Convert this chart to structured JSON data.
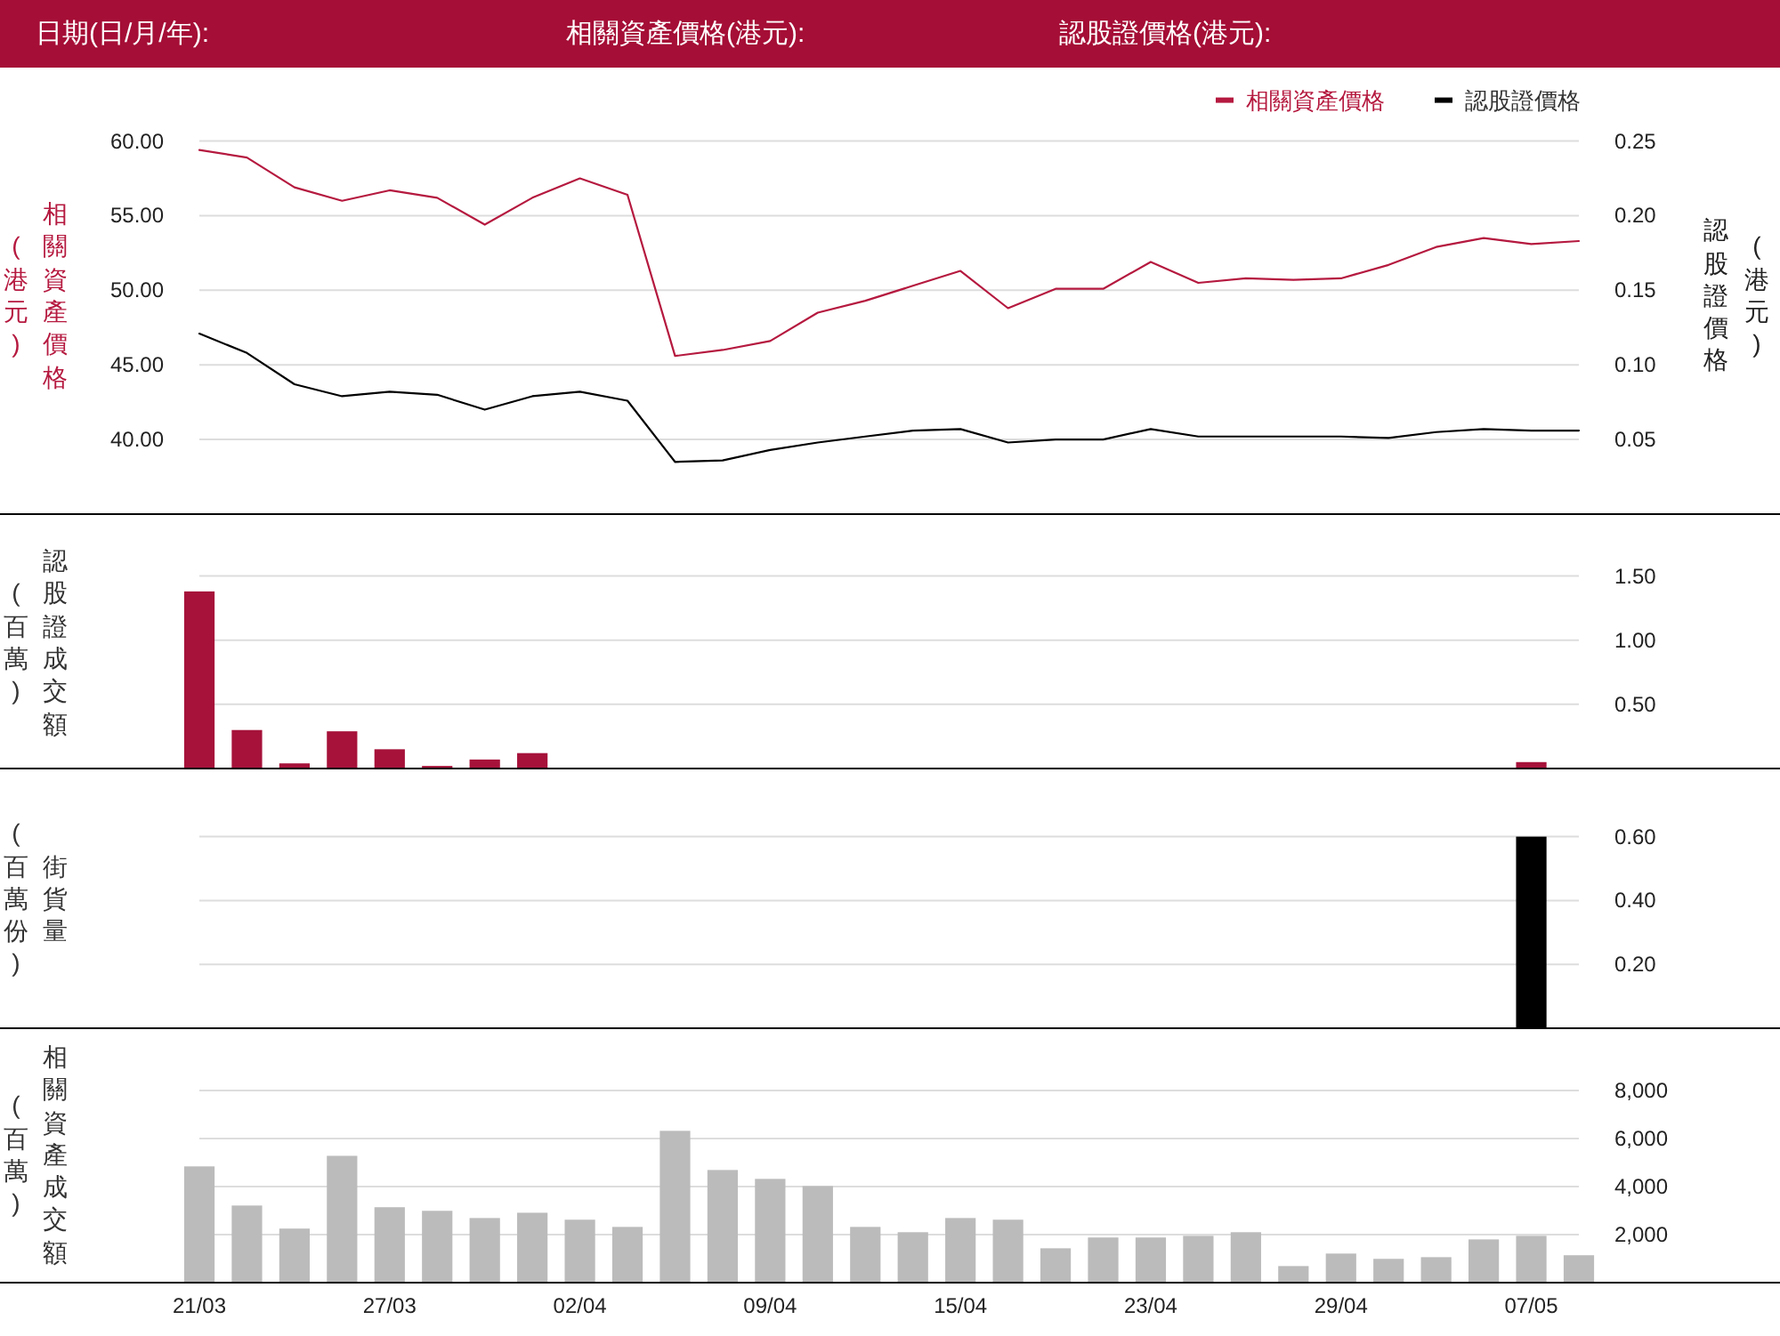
{
  "chart_data": [
    {
      "type": "line",
      "annotations": [
        "日期(日/月/年):",
        "相關資產價格(港元):",
        "認股證價格(港元):"
      ],
      "categories": [
        null,
        null,
        null,
        null,
        null,
        null,
        null,
        null,
        null,
        null,
        null,
        null,
        null,
        null,
        null,
        null,
        null,
        null,
        null,
        null,
        null,
        null,
        null,
        null,
        null,
        null,
        null,
        null,
        null,
        null
      ],
      "ylabel": "相關資產價格(港元)",
      "y2label": "認股證價格(港元)",
      "ylim": [
        35,
        60
      ],
      "yticks": [
        {
          "value": 40,
          "label": "40.00"
        },
        {
          "value": 45,
          "label": "45.00"
        },
        {
          "value": 50,
          "label": "50.00"
        },
        {
          "value": 55,
          "label": "55.00"
        },
        {
          "value": 60,
          "label": "60.00"
        }
      ],
      "y2lim": [
        0,
        0.25
      ],
      "y2ticks": [
        0.05,
        {
          "value": 0.1,
          "label": "0.10"
        },
        0.15,
        {
          "value": 0.2,
          "label": "0.20"
        },
        0.25
      ],
      "grid": "y",
      "legend": "top right",
      "tick_labels": "y",
      "series": [
        {
          "name": "相關資產價格",
          "color": "#b5193f",
          "values": [
            59.4,
            58.9,
            56.9,
            56.0,
            56.7,
            56.2,
            54.4,
            56.2,
            57.5,
            56.4,
            45.6,
            46.0,
            46.6,
            48.5,
            49.3,
            50.3,
            51.3,
            48.8,
            50.1,
            50.1,
            51.9,
            50.5,
            50.8,
            50.7,
            50.8,
            51.7,
            52.9,
            53.5,
            53.1,
            53.3
          ]
        },
        {
          "name": "認股證價格",
          "color": "#000000",
          "axis": "y2",
          "values": [
            0.121,
            0.108,
            0.087,
            0.079,
            0.082,
            0.08,
            0.07,
            0.079,
            0.082,
            0.076,
            0.035,
            0.036,
            0.043,
            0.048,
            0.052,
            0.056,
            0.057,
            0.048,
            0.05,
            0.05,
            0.057,
            0.052,
            0.052,
            0.052,
            0.052,
            0.051,
            0.055,
            0.057,
            0.056,
            0.056
          ]
        }
      ]
    },
    {
      "type": "bar",
      "categories": [
        null,
        null,
        null,
        null,
        null,
        null,
        null,
        null,
        null,
        null,
        null,
        null,
        null,
        null,
        null,
        null,
        null,
        null,
        null,
        null,
        null,
        null,
        null,
        null,
        null,
        null,
        null,
        null,
        null,
        null
      ],
      "ylabel": "認股證成交額(百萬)",
      "ylim": [
        0,
        1.5
      ],
      "yticks": [
        {
          "value": 0.5,
          "label": "0.50"
        },
        {
          "value": 1,
          "label": "1.00"
        },
        {
          "value": 1.5,
          "label": "1.50"
        }
      ],
      "grid": "y",
      "tick_labels": "y",
      "color": "#a6123a",
      "values": [
        1.38,
        0.3,
        0.04,
        0.29,
        0.15,
        0.02,
        0.07,
        0.12,
        null,
        null,
        null,
        null,
        null,
        null,
        null,
        null,
        null,
        null,
        null,
        null,
        null,
        null,
        null,
        null,
        null,
        null,
        null,
        null,
        0.05,
        null
      ]
    },
    {
      "type": "bar",
      "categories": [
        null,
        null,
        null,
        null,
        null,
        null,
        null,
        null,
        null,
        null,
        null,
        null,
        null,
        null,
        null,
        null,
        null,
        null,
        null,
        null,
        null,
        null,
        null,
        null,
        null,
        null,
        null,
        null,
        null,
        null
      ],
      "ylabel": "街貨量(百萬份)",
      "ylim": [
        0,
        0.6
      ],
      "yticks": [
        {
          "value": 0.2,
          "label": "0.20"
        },
        {
          "value": 0.4,
          "label": "0.40"
        },
        {
          "value": 0.6,
          "label": "0.60"
        }
      ],
      "grid": "y",
      "tick_labels": "y",
      "color": "#000000",
      "values": [
        null,
        null,
        null,
        null,
        null,
        null,
        null,
        null,
        null,
        null,
        null,
        null,
        null,
        null,
        null,
        null,
        null,
        null,
        null,
        null,
        null,
        null,
        null,
        null,
        null,
        null,
        null,
        null,
        0.6,
        null
      ]
    },
    {
      "type": "bar",
      "categories": [
        "21/03",
        null,
        null,
        null,
        "27/03",
        null,
        null,
        null,
        "02/04",
        null,
        null,
        null,
        "09/04",
        null,
        null,
        null,
        "15/04",
        null,
        null,
        null,
        "23/04",
        null,
        null,
        null,
        "29/04",
        null,
        null,
        null,
        "07/05",
        null
      ],
      "ylabel": "相關資產成交額(百萬)",
      "ylim": [
        0,
        8000
      ],
      "yticks": [
        {
          "value": 2000,
          "label": "2,000"
        },
        {
          "value": 4000,
          "label": "4,000"
        },
        {
          "value": 6000,
          "label": "6,000"
        },
        {
          "value": 8000,
          "label": "8,000"
        }
      ],
      "grid": "y",
      "color": "#bbbbbb",
      "values": [
        4840,
        3210,
        2250,
        5280,
        3140,
        2990,
        2690,
        2910,
        2620,
        2320,
        6320,
        4690,
        4320,
        4020,
        2320,
        2100,
        2690,
        2620,
        1430,
        1880,
        1880,
        1950,
        2100,
        690,
        1210,
        990,
        1060,
        1800,
        1950,
        1140
      ]
    }
  ]
}
